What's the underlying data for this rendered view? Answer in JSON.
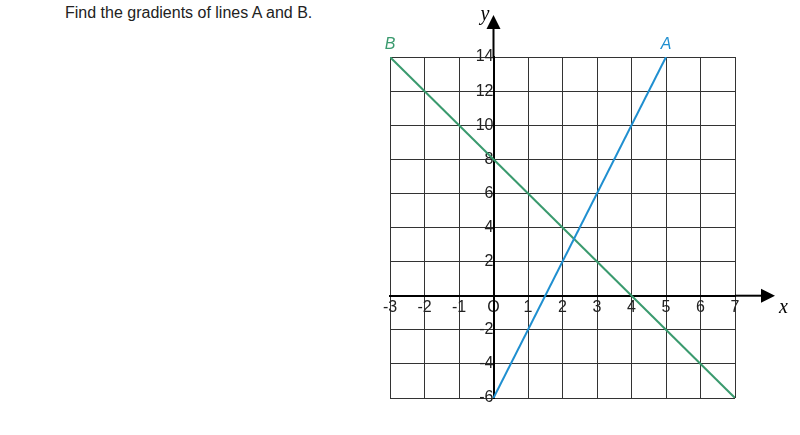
{
  "chart_data": {
    "type": "line",
    "title": "Find the gradients of lines A and B.",
    "xlabel": "x",
    "ylabel": "y",
    "series": [
      {
        "name": "A",
        "color": "#1f8fd0",
        "x": [
          0,
          5
        ],
        "values": [
          -6,
          14
        ]
      },
      {
        "name": "B",
        "color": "#3a9a6e",
        "x": [
          -3,
          7
        ],
        "values": [
          14,
          -6
        ]
      }
    ],
    "xlim": [
      -3,
      7
    ],
    "ylim": [
      -6,
      14
    ],
    "xticks": [
      -3,
      -2,
      -1,
      {
        "value": 0,
        "label": "O"
      },
      1,
      2,
      3,
      4,
      5,
      6,
      7
    ],
    "yticks": [
      -6,
      -4,
      -2,
      2,
      4,
      6,
      8,
      10,
      12,
      14
    ],
    "grid": true
  }
}
